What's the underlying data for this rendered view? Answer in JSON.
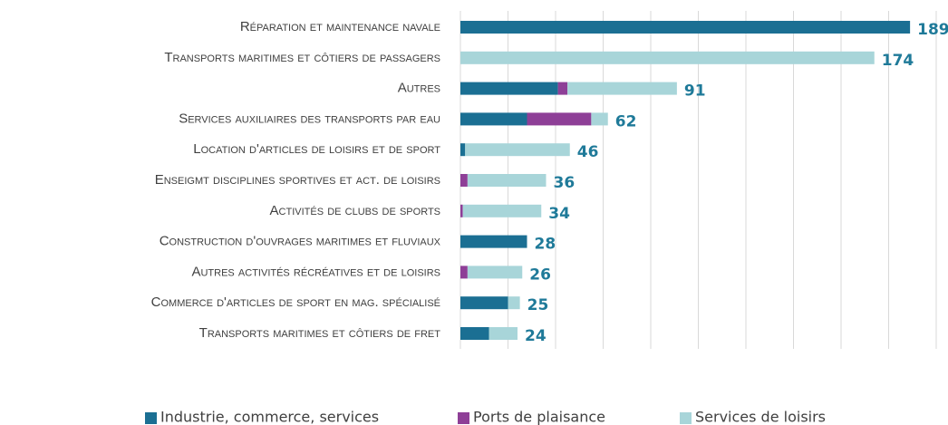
{
  "chart_data": {
    "type": "stacked-bar-horizontal",
    "categories": [
      "Réparation et maintenance navale",
      "Transports maritimes et côtiers de passagers",
      "Autres",
      "Services auxiliaires des transports par eau",
      "Location d'articles de loisirs et de sport",
      "Enseigmt disciplines sportives et act. de loisirs",
      "Activités de clubs de sports",
      "Construction d'ouvrages maritimes et fluviaux",
      "Autres activités récréatives et de loisirs",
      "Commerce d'articles de sport en mag. spécialisé",
      "Transports maritimes et côtiers de fret"
    ],
    "series": [
      {
        "name": "Industrie, commerce, services",
        "color": "#1b6f93",
        "values": [
          189,
          0,
          41,
          28,
          2,
          0,
          0,
          28,
          0,
          20,
          12
        ]
      },
      {
        "name": "Ports de plaisance",
        "color": "#8e3f97",
        "values": [
          0,
          0,
          4,
          27,
          0,
          3,
          1,
          0,
          3,
          0,
          0
        ]
      },
      {
        "name": "Services de loisirs",
        "color": "#a8d5d9",
        "values": [
          0,
          174,
          46,
          7,
          44,
          33,
          33,
          0,
          23,
          5,
          12
        ]
      }
    ],
    "totals": [
      189,
      174,
      91,
      62,
      46,
      36,
      34,
      28,
      26,
      25,
      24
    ],
    "xlim": [
      0,
      200
    ],
    "xticks": [
      0,
      20,
      40,
      60,
      80,
      100,
      120,
      140,
      160,
      180,
      200
    ],
    "grid": true
  }
}
